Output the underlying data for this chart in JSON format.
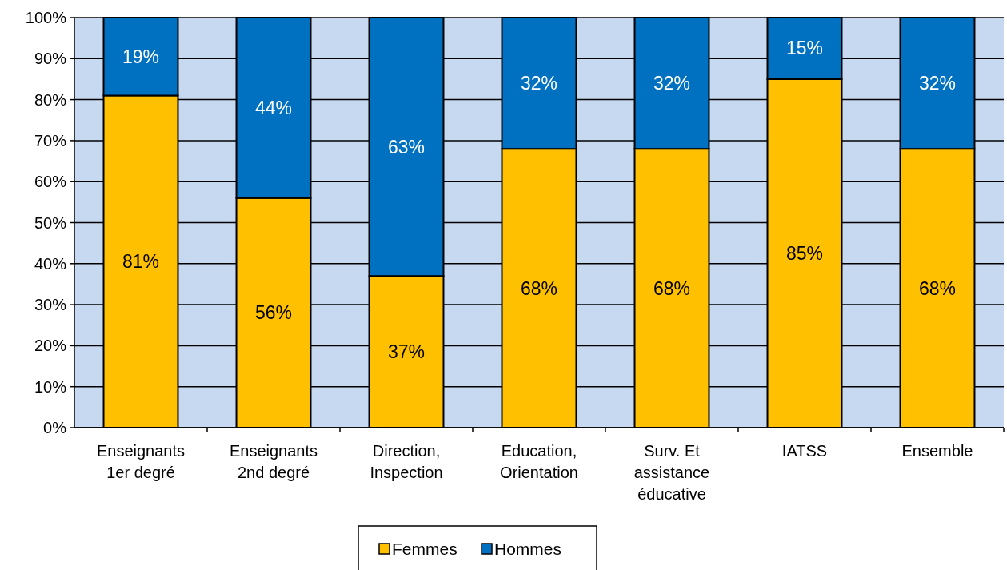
{
  "chart_data": {
    "type": "bar",
    "stacked": true,
    "categories": [
      "Enseignants 1er degré",
      "Enseignants 2nd degré",
      "Direction, Inspection",
      "Education, Orientation",
      "Surv. Et assistance éducative",
      "IATSS",
      "Ensemble"
    ],
    "series": [
      {
        "name": "Femmes",
        "color": "#ffc000",
        "values": [
          81,
          56,
          37,
          68,
          68,
          85,
          68
        ],
        "value_labels": [
          "81%",
          "56%",
          "37%",
          "68%",
          "68%",
          "85%",
          "68%"
        ]
      },
      {
        "name": "Hommes",
        "color": "#0070c0",
        "values": [
          19,
          44,
          63,
          32,
          32,
          15,
          32
        ],
        "value_labels": [
          "19%",
          "44%",
          "63%",
          "32%",
          "32%",
          "15%",
          "32%"
        ]
      }
    ],
    "ylim": [
      0,
      100
    ],
    "yticks": [
      {
        "value": 0,
        "label": "0%"
      },
      {
        "value": 10,
        "label": "10%"
      },
      {
        "value": 20,
        "label": "20%"
      },
      {
        "value": 30,
        "label": "30%"
      },
      {
        "value": 40,
        "label": "40%"
      },
      {
        "value": 50,
        "label": "50%"
      },
      {
        "value": 60,
        "label": "60%"
      },
      {
        "value": 70,
        "label": "70%"
      },
      {
        "value": 80,
        "label": "80%"
      },
      {
        "value": 90,
        "label": "90%"
      },
      {
        "value": 100,
        "label": "100%"
      }
    ],
    "grid": "y",
    "legend": "bottom"
  }
}
